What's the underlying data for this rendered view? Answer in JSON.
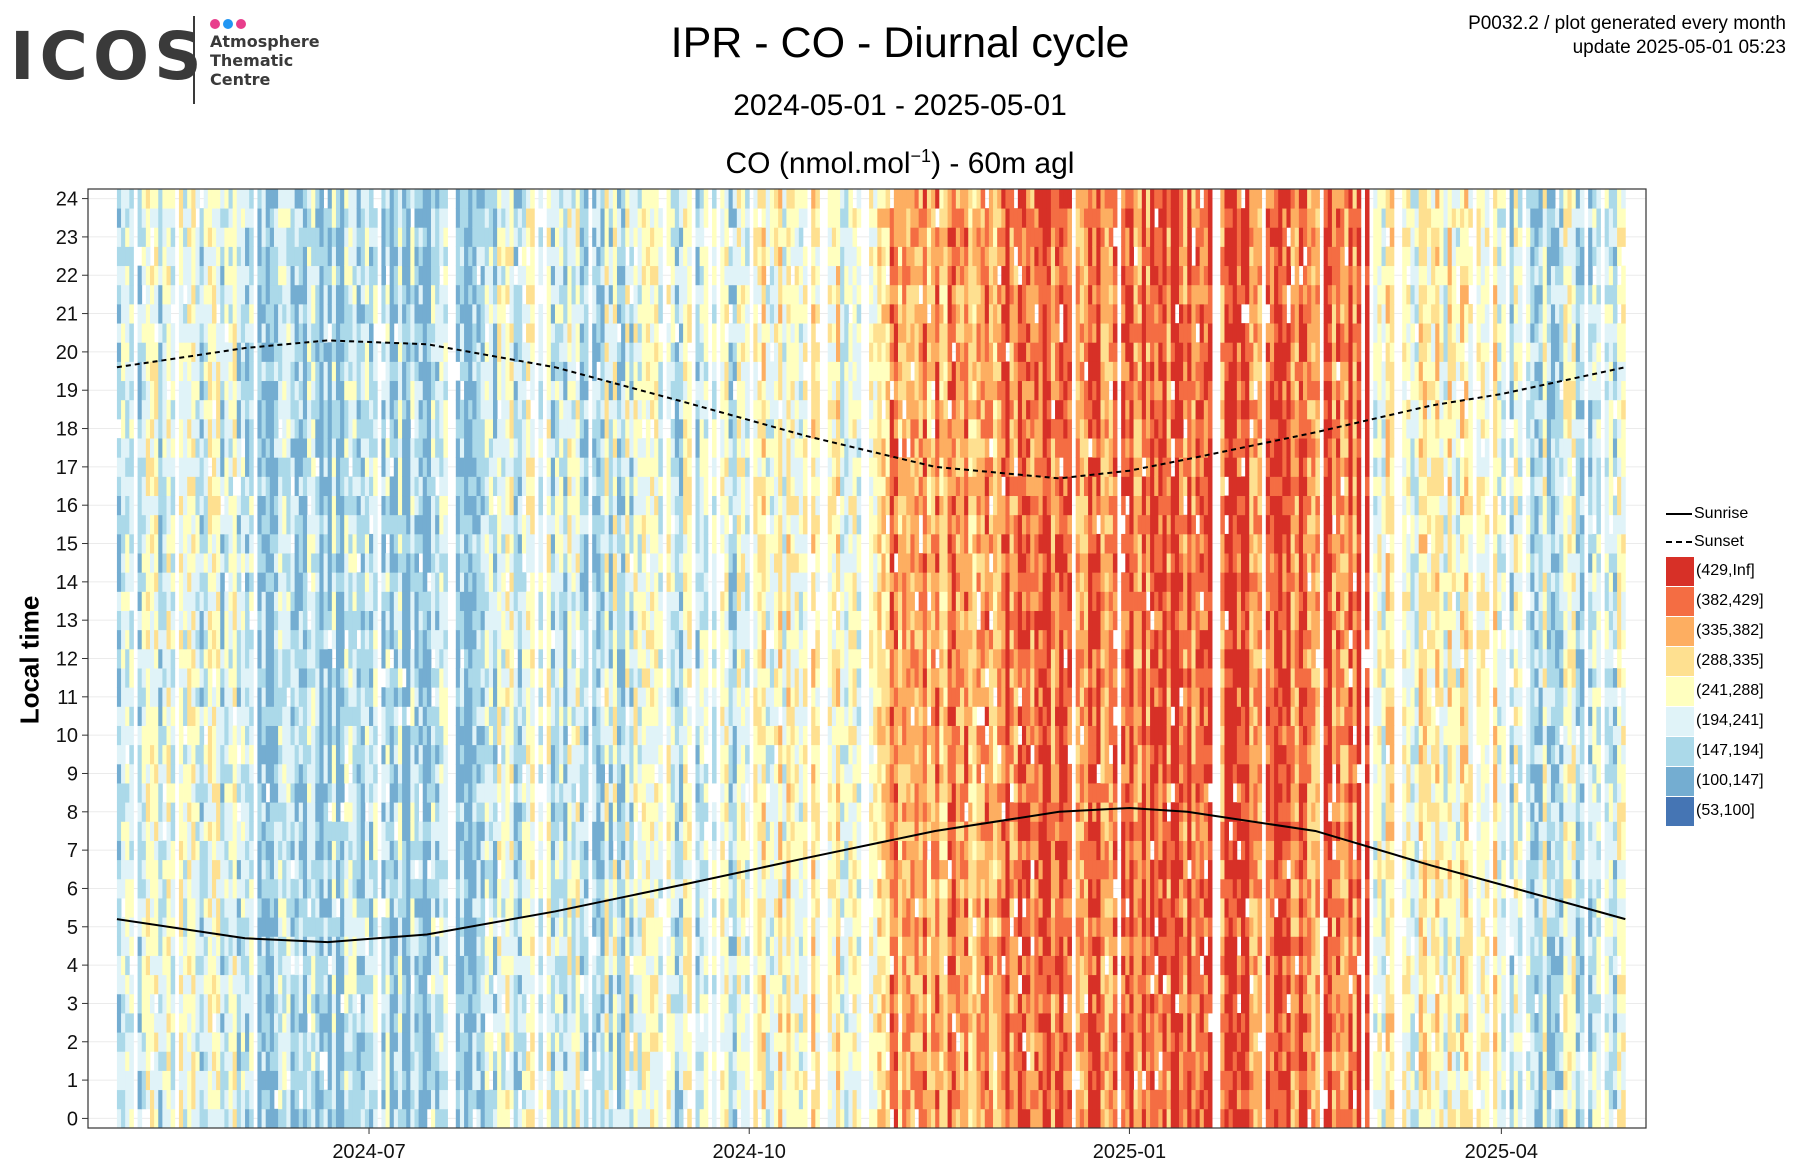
{
  "logo": {
    "wordmark": "ICOS",
    "subtitle": "Atmosphere\nThematic\nCentre",
    "dot_colors": [
      "#e83e8c",
      "#2196f3",
      "#e83e8c"
    ]
  },
  "header": {
    "title": "IPR - CO - Diurnal cycle",
    "daterange": "2024-05-01 - 2025-05-01",
    "subtitle_pre": "CO (nmol.mol",
    "subtitle_sup": "−1",
    "subtitle_post": ") - 60m agl",
    "meta_line1": "P0032.2 / plot generated every month",
    "meta_line2": "update  2025-05-01 05:23"
  },
  "chart_data": {
    "type": "heatmap",
    "ylabel": "Local time",
    "x_range": [
      "2024-04-24",
      "2025-05-06"
    ],
    "y_range": [
      -0.25,
      24.25
    ],
    "yticks": [
      "0",
      "1",
      "2",
      "3",
      "4",
      "5",
      "6",
      "7",
      "8",
      "9",
      "10",
      "11",
      "12",
      "13",
      "14",
      "15",
      "16",
      "17",
      "18",
      "19",
      "20",
      "21",
      "22",
      "23",
      "24"
    ],
    "xticks": [
      {
        "date": "2024-07-01",
        "label": "2024-07"
      },
      {
        "date": "2024-10-01",
        "label": "2024-10"
      },
      {
        "date": "2025-01-01",
        "label": "2025-01"
      },
      {
        "date": "2025-04-01",
        "label": "2025-04"
      }
    ],
    "grid": true,
    "cells": {
      "rows_per_hour": 2,
      "data_start": "2024-05-01",
      "data_end": "2025-05-01"
    },
    "monthly_typical_class": [
      {
        "month": "2024-05",
        "class": 2
      },
      {
        "month": "2024-06",
        "class": 1
      },
      {
        "month": "2024-07",
        "class": 1
      },
      {
        "month": "2024-08",
        "class": 2
      },
      {
        "month": "2024-09",
        "class": 2
      },
      {
        "month": "2024-10",
        "class": 3
      },
      {
        "month": "2024-11",
        "class": 5
      },
      {
        "month": "2024-12",
        "class": 6
      },
      {
        "month": "2025-01",
        "class": 6
      },
      {
        "month": "2025-02",
        "class": 6
      },
      {
        "month": "2025-03",
        "class": 3
      },
      {
        "month": "2025-04",
        "class": 2
      }
    ],
    "classes": [
      {
        "label": "(429,Inf]",
        "color": "#d73027"
      },
      {
        "label": "(382,429]",
        "color": "#f46d43"
      },
      {
        "label": "(335,382]",
        "color": "#fdae61"
      },
      {
        "label": "(288,335]",
        "color": "#fee090"
      },
      {
        "label": "(241,288]",
        "color": "#ffffbf"
      },
      {
        "label": "(194,241]",
        "color": "#e0f3f8"
      },
      {
        "label": "(147,194]",
        "color": "#abd9e9"
      },
      {
        "label": "(100,147]",
        "color": "#74add1"
      },
      {
        "label": "(53,100]",
        "color": "#4575b4"
      }
    ],
    "lines": [
      {
        "name": "Sunrise",
        "style": "solid",
        "points": [
          [
            "2024-05-01",
            5.2
          ],
          [
            "2024-06-01",
            4.7
          ],
          [
            "2024-06-21",
            4.6
          ],
          [
            "2024-07-15",
            4.8
          ],
          [
            "2024-08-15",
            5.4
          ],
          [
            "2024-09-15",
            6.1
          ],
          [
            "2024-10-15",
            6.8
          ],
          [
            "2024-11-15",
            7.5
          ],
          [
            "2024-12-15",
            8.0
          ],
          [
            "2025-01-01",
            8.1
          ],
          [
            "2025-01-15",
            8.0
          ],
          [
            "2025-02-15",
            7.5
          ],
          [
            "2025-03-15",
            6.6
          ],
          [
            "2025-04-01",
            6.1
          ],
          [
            "2025-05-01",
            5.2
          ]
        ]
      },
      {
        "name": "Sunset",
        "style": "dashed",
        "points": [
          [
            "2024-05-01",
            19.6
          ],
          [
            "2024-06-01",
            20.1
          ],
          [
            "2024-06-21",
            20.3
          ],
          [
            "2024-07-15",
            20.2
          ],
          [
            "2024-08-15",
            19.6
          ],
          [
            "2024-09-15",
            18.7
          ],
          [
            "2024-10-15",
            17.8
          ],
          [
            "2024-11-15",
            17.0
          ],
          [
            "2024-12-15",
            16.7
          ],
          [
            "2025-01-01",
            16.9
          ],
          [
            "2025-01-15",
            17.2
          ],
          [
            "2025-02-15",
            17.9
          ],
          [
            "2025-03-15",
            18.6
          ],
          [
            "2025-04-01",
            18.9
          ],
          [
            "2025-05-01",
            19.6
          ]
        ]
      }
    ]
  }
}
